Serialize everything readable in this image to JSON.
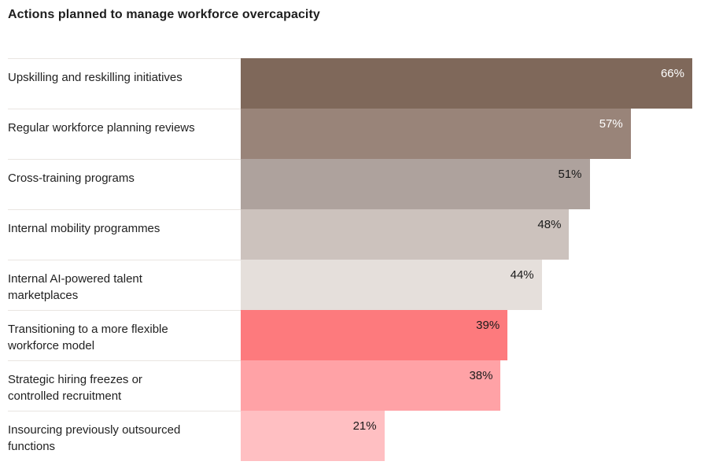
{
  "title": "Actions planned to manage workforce overcapacity",
  "chart_data": {
    "type": "bar",
    "orientation": "horizontal",
    "title": "Actions planned to manage workforce overcapacity",
    "xlabel": "",
    "ylabel": "",
    "xlim": [
      0,
      66
    ],
    "grid": false,
    "legend": false,
    "categories": [
      "Upskilling and reskilling initiatives",
      "Regular workforce planning reviews",
      "Cross-training programs",
      "Internal mobility programmes",
      "Internal AI-powered talent\nmarketplaces",
      "Transitioning to a more flexible\nworkforce model",
      "Strategic hiring freezes or\ncontrolled recruitment",
      "Insourcing previously outsourced\nfunctions"
    ],
    "values": [
      66,
      57,
      51,
      48,
      44,
      39,
      38,
      21
    ],
    "value_labels": [
      "66%",
      "57%",
      "51%",
      "48%",
      "44%",
      "39%",
      "38%",
      "21%"
    ],
    "bar_colors": [
      "#7f685a",
      "#998479",
      "#aea29d",
      "#ccc2bd",
      "#e5dfdb",
      "#fd7a7d",
      "#ffa2a6",
      "#ffbfc2"
    ],
    "value_label_colors": [
      "#ffffff",
      "#ffffff",
      "#1a1a1a",
      "#1a1a1a",
      "#1a1a1a",
      "#1a1a1a",
      "#1a1a1a",
      "#1a1a1a"
    ],
    "separator_color": "#e9e5e1"
  }
}
